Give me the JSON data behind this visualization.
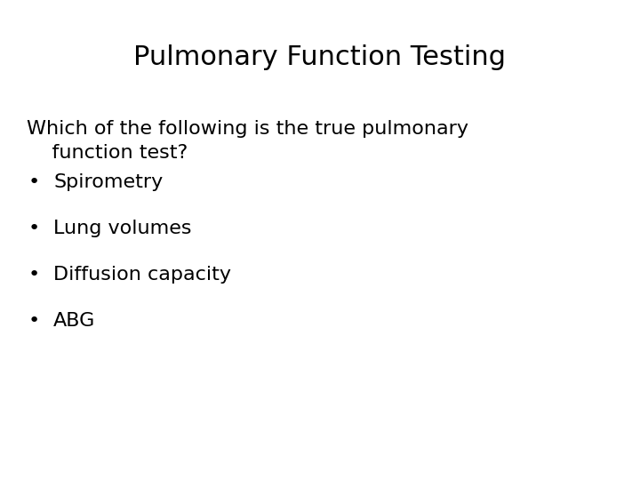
{
  "title": "Pulmonary Function Testing",
  "question_line1": "Which of the following is the true pulmonary",
  "question_line2": "    function test?",
  "bullets": [
    "Spirometry",
    "Lung volumes",
    "Diffusion capacity",
    "ABG"
  ],
  "background_color": "#ffffff",
  "text_color": "#000000",
  "title_fontsize": 22,
  "body_fontsize": 16,
  "title_font": "DejaVu Sans",
  "body_font": "DejaVu Sans"
}
